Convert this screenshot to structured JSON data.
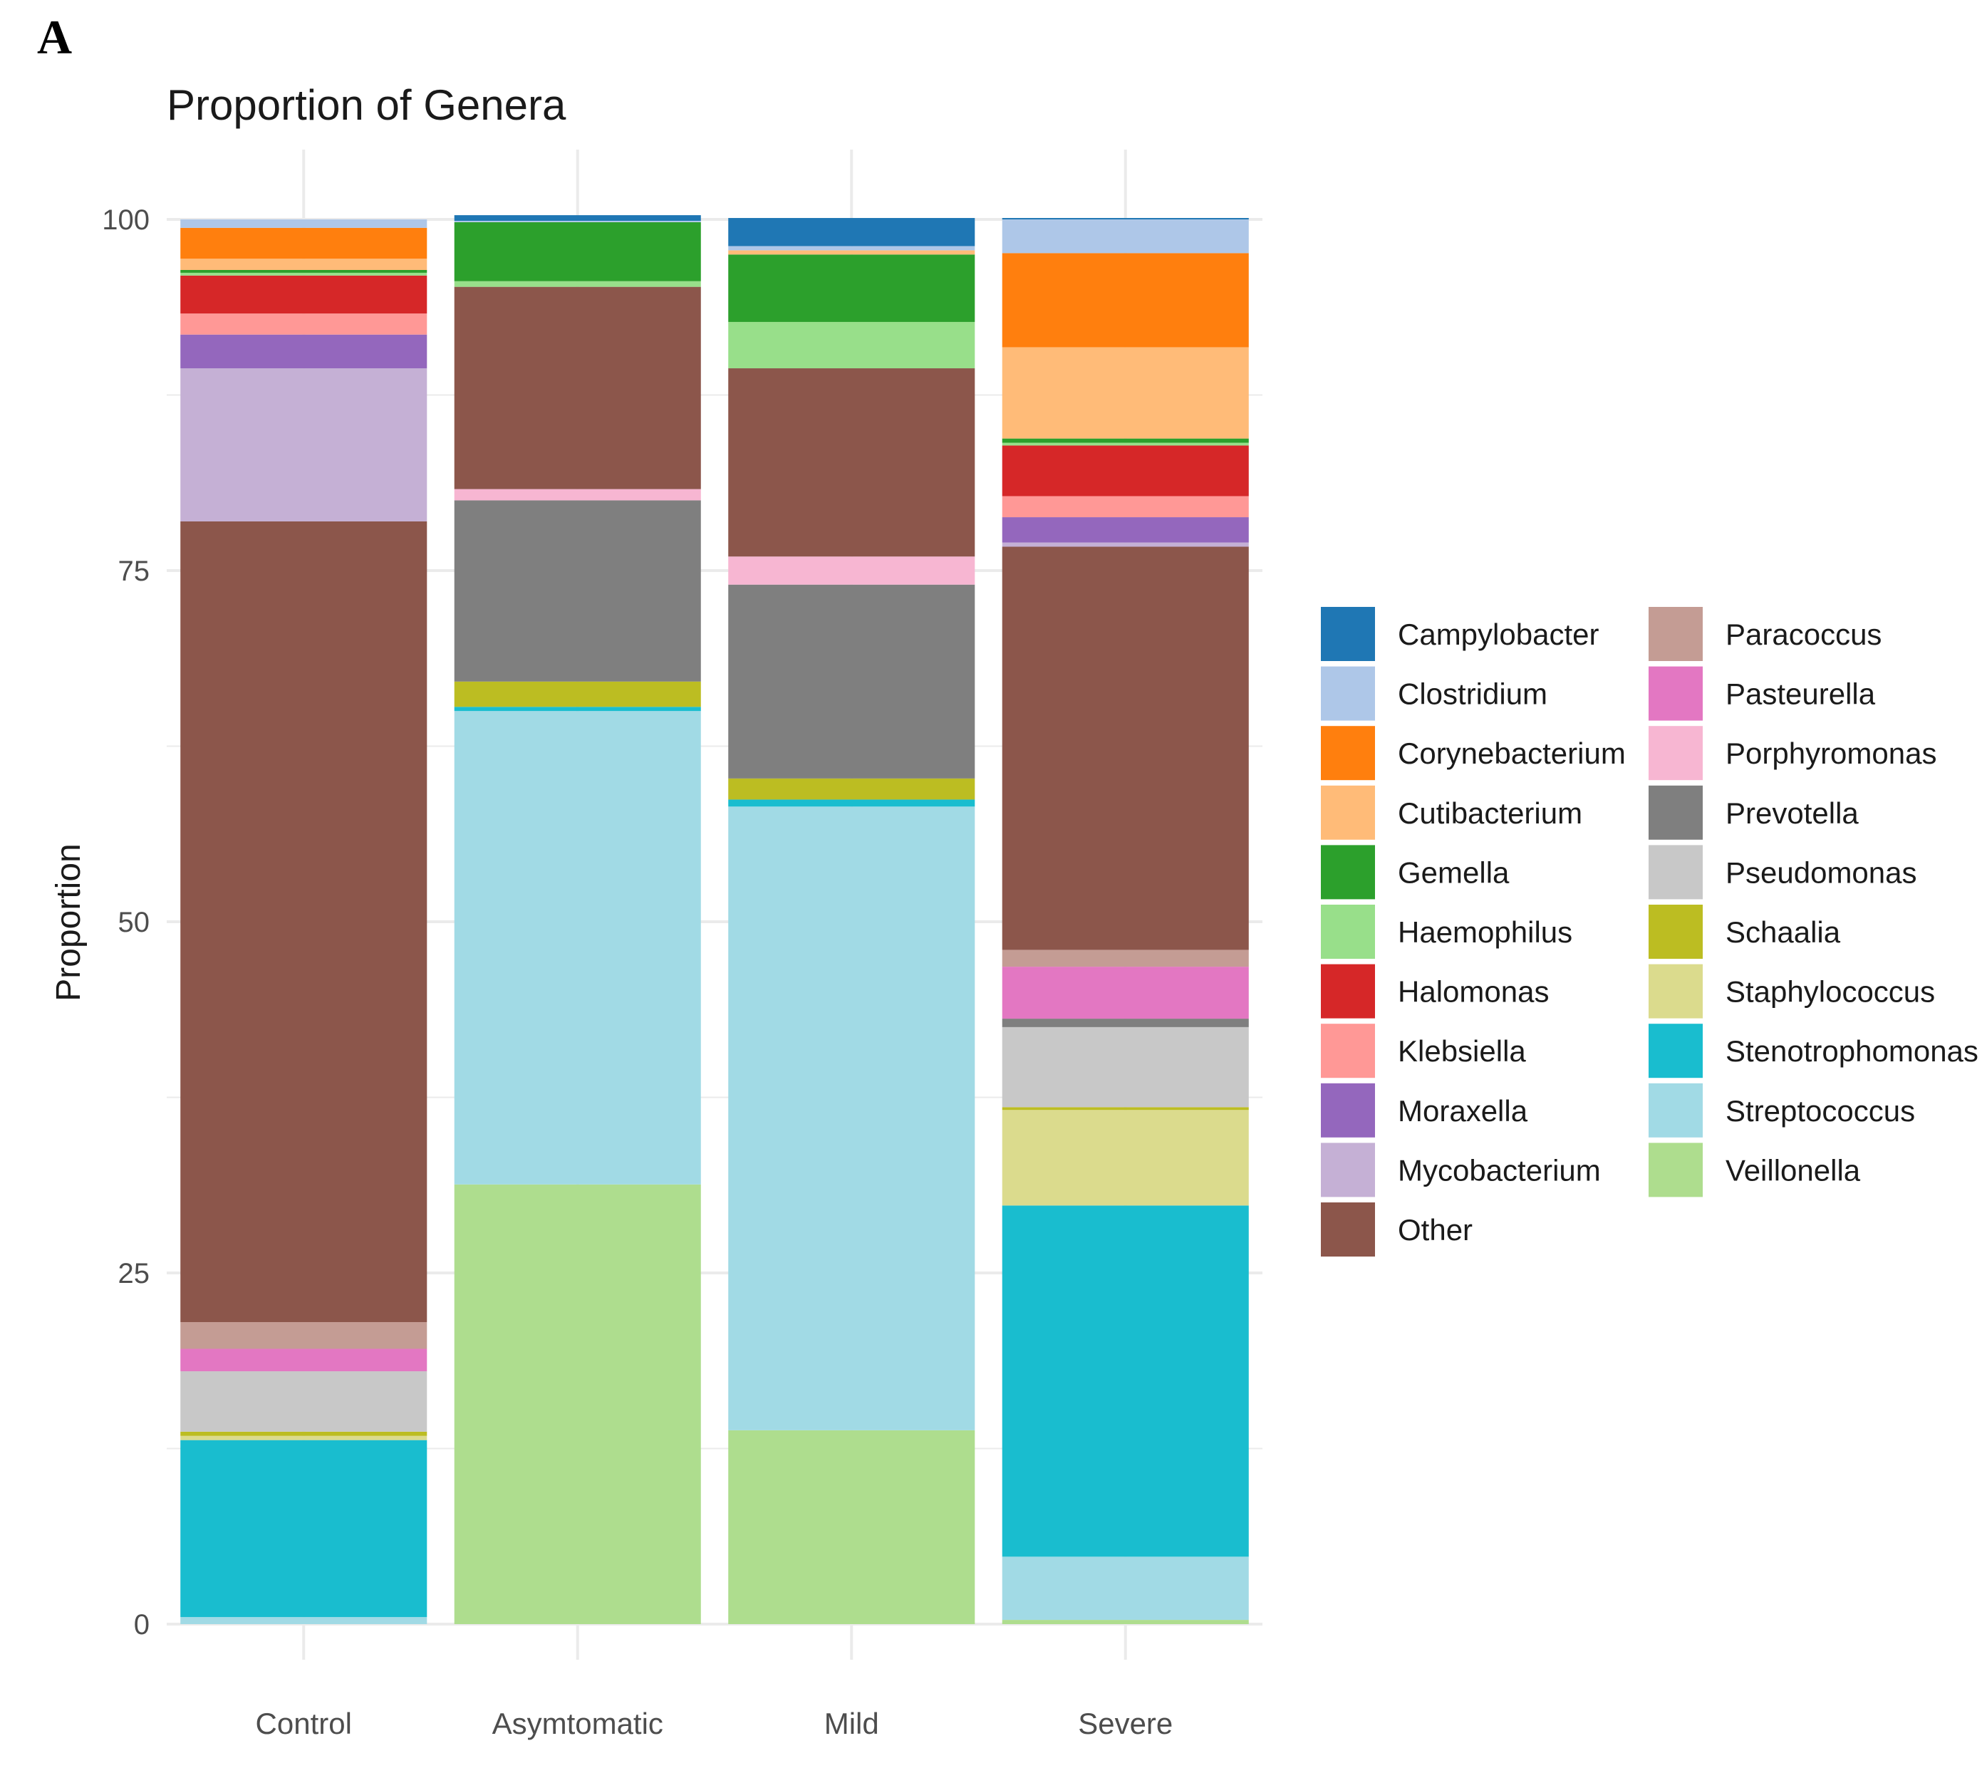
{
  "panel_label": "A",
  "chart_data": {
    "type": "bar",
    "stacked": true,
    "title": "Proportion of Genera",
    "xlabel": "",
    "ylabel": "Proportion",
    "ylim": [
      0,
      100
    ],
    "yticks": [
      0,
      25,
      50,
      75,
      100
    ],
    "grid": true,
    "legend_position": "right",
    "categories": [
      "Control",
      "Asymtomatic",
      "Mild",
      "Severe"
    ],
    "series": [
      {
        "name": "Veillonella",
        "color": "#aedd8e",
        "values": [
          0.0,
          31.3,
          13.8,
          0.3
        ]
      },
      {
        "name": "Streptococcus",
        "color": "#a1dae5",
        "values": [
          0.5,
          33.7,
          44.4,
          4.5
        ]
      },
      {
        "name": "Stenotrophomonas",
        "color": "#19bdcf",
        "values": [
          12.6,
          0.3,
          0.5,
          25.0
        ]
      },
      {
        "name": "Staphylococcus",
        "color": "#dbdb8d",
        "values": [
          0.3,
          0.0,
          0.0,
          6.8
        ]
      },
      {
        "name": "Schaalia",
        "color": "#bcbd22",
        "values": [
          0.3,
          1.8,
          1.5,
          0.2
        ]
      },
      {
        "name": "Pseudomonas",
        "color": "#c8c8c8",
        "values": [
          4.3,
          0.0,
          0.0,
          5.7
        ]
      },
      {
        "name": "Prevotella",
        "color": "#7f7f7f",
        "values": [
          0.0,
          12.9,
          13.8,
          0.6
        ]
      },
      {
        "name": "Porphyromonas",
        "color": "#f7b6d2",
        "values": [
          0.0,
          0.8,
          2.0,
          0.0
        ]
      },
      {
        "name": "Pasteurella",
        "color": "#e377c2",
        "values": [
          1.6,
          0.0,
          0.0,
          3.7
        ]
      },
      {
        "name": "Paracoccus",
        "color": "#c49c94",
        "values": [
          1.9,
          0.0,
          0.0,
          1.2
        ]
      },
      {
        "name": "Other",
        "color": "#8c564b",
        "values": [
          57.0,
          14.4,
          13.4,
          28.7
        ]
      },
      {
        "name": "Mycobacterium",
        "color": "#c5b0d5",
        "values": [
          10.9,
          0.0,
          0.0,
          0.3
        ]
      },
      {
        "name": "Moraxella",
        "color": "#9467bd",
        "values": [
          2.4,
          0.0,
          0.0,
          1.8
        ]
      },
      {
        "name": "Klebsiella",
        "color": "#ff9896",
        "values": [
          1.5,
          0.0,
          0.0,
          1.5
        ]
      },
      {
        "name": "Halomonas",
        "color": "#d62728",
        "values": [
          2.7,
          0.0,
          0.0,
          3.6
        ]
      },
      {
        "name": "Haemophilus",
        "color": "#98df8a",
        "values": [
          0.2,
          0.4,
          3.3,
          0.2
        ]
      },
      {
        "name": "Gemella",
        "color": "#2ca02c",
        "values": [
          0.2,
          4.2,
          4.8,
          0.3
        ]
      },
      {
        "name": "Cutibacterium",
        "color": "#ffbb78",
        "values": [
          0.8,
          0.0,
          0.3,
          6.5
        ]
      },
      {
        "name": "Corynebacterium",
        "color": "#ff7f0e",
        "values": [
          2.2,
          0.0,
          0.0,
          6.7
        ]
      },
      {
        "name": "Clostridium",
        "color": "#aec7e8",
        "values": [
          0.6,
          0.1,
          0.3,
          2.4
        ]
      },
      {
        "name": "Campylobacter",
        "color": "#1f77b4",
        "values": [
          0.0,
          0.4,
          2.0,
          0.1
        ]
      }
    ],
    "legend_columns": [
      [
        "Campylobacter",
        "Clostridium",
        "Corynebacterium",
        "Cutibacterium",
        "Gemella",
        "Haemophilus",
        "Halomonas",
        "Klebsiella",
        "Moraxella",
        "Mycobacterium",
        "Other"
      ],
      [
        "Paracoccus",
        "Pasteurella",
        "Porphyromonas",
        "Prevotella",
        "Pseudomonas",
        "Schaalia",
        "Staphylococcus",
        "Stenotrophomonas",
        "Streptococcus",
        "Veillonella"
      ]
    ]
  }
}
